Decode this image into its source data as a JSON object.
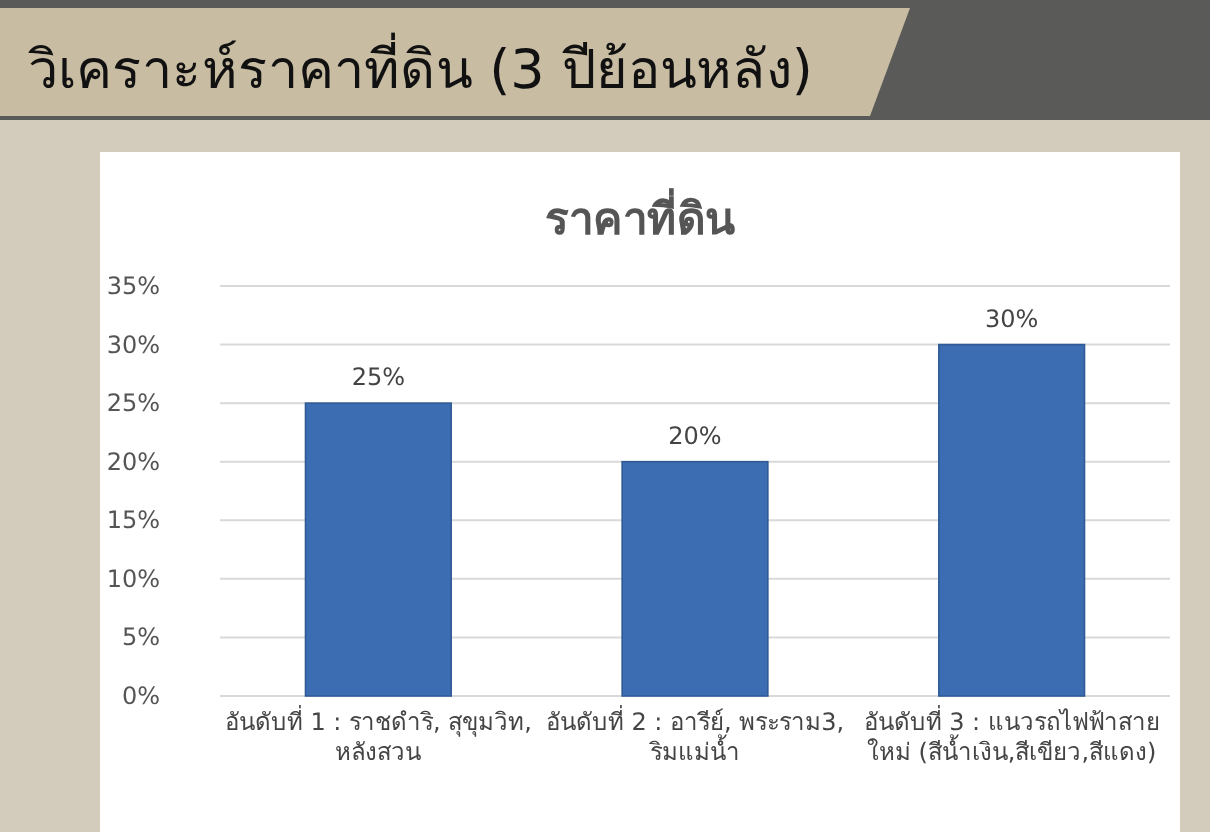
{
  "chart_data": {
    "type": "bar",
    "title": "วิเคราะห์ราคาที่ดิน (3 ปีย้อนหลัง)",
    "subtitle": "ราคาที่ดิน",
    "categories": [
      "อันดับที่ 1 : ราชดำริ, สุขุมวิท, หลังสวน",
      "อันดับที่ 2 : อารีย์, พระราม3, ริมแม่น้ำ",
      "อันดับที่ 3 : แนวรถไฟฟ้าสายใหม่ (สีน้ำเงิน,สีเขียว,สีแดง)"
    ],
    "values": [
      25,
      20,
      30
    ],
    "value_labels": [
      "25%",
      "20%",
      "30%"
    ],
    "color": "#3c6db3",
    "ylim": [
      0,
      35
    ],
    "yticks": [
      {
        "value": 0,
        "label": "0%"
      },
      {
        "value": 5,
        "label": "5%"
      },
      {
        "value": 10,
        "label": "10%"
      },
      {
        "value": 15,
        "label": "15%"
      },
      {
        "value": 20,
        "label": "20%"
      },
      {
        "value": 25,
        "label": "25%"
      },
      {
        "value": 30,
        "label": "30%"
      },
      {
        "value": 35,
        "label": "35%"
      }
    ],
    "grid": "y"
  }
}
